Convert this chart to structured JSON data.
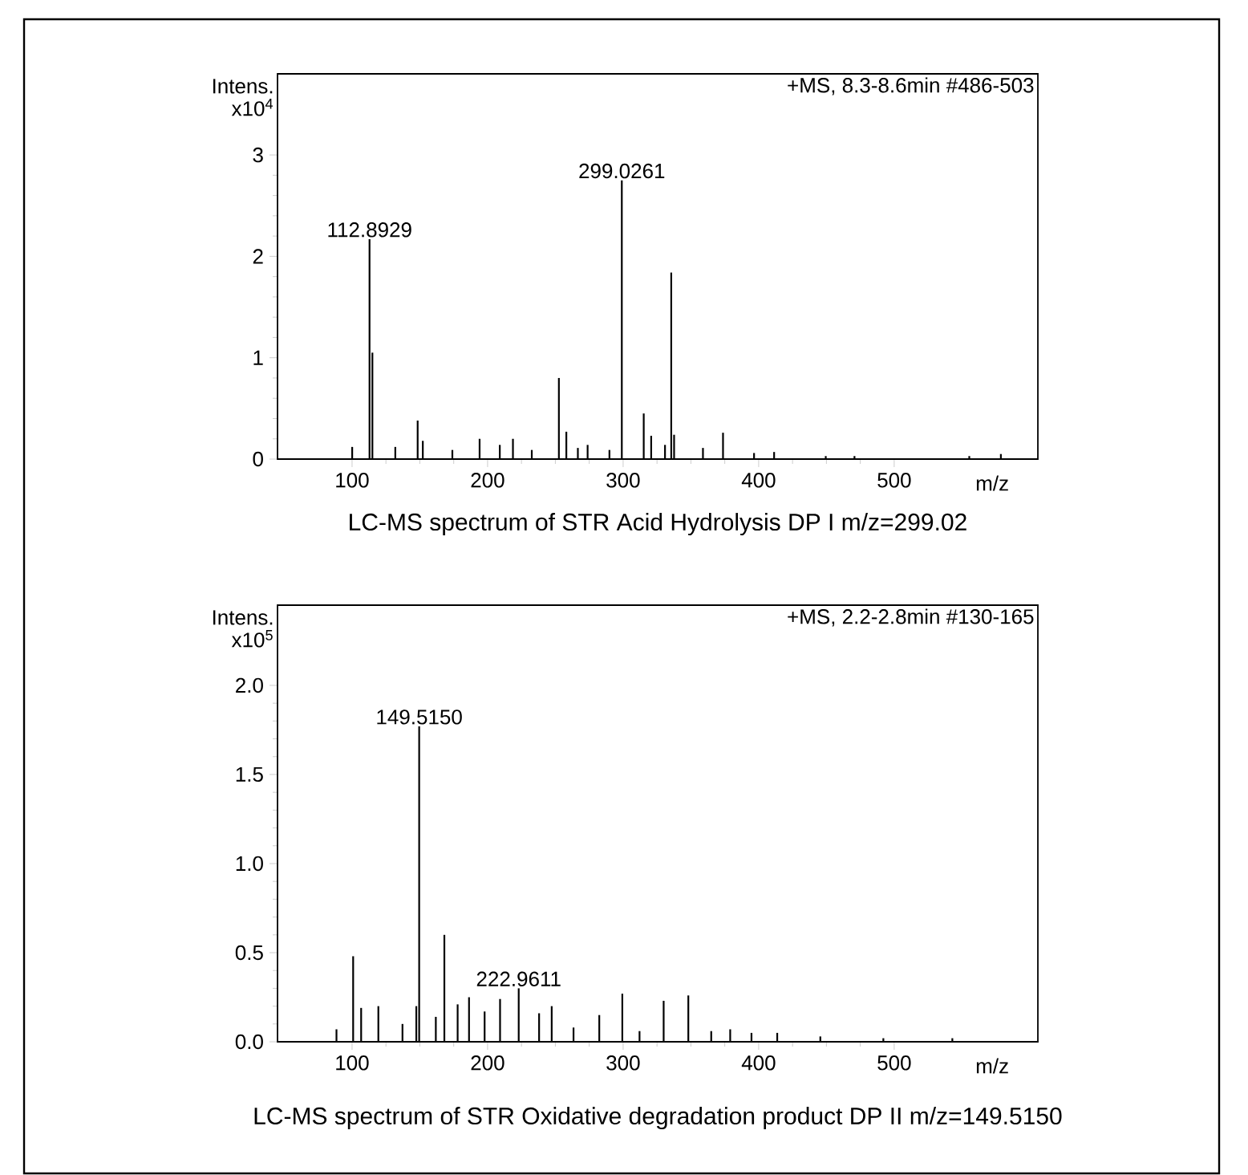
{
  "chart_data": [
    {
      "type": "bar",
      "title": "LC-MS spectrum of STR Acid Hydrolysis DP I m/z=299.02",
      "xlabel": "m/z",
      "ylabel": "Intens. x10$^{4}$",
      "color": "#000000",
      "x": [
        100.1,
        112.89,
        115,
        131.9,
        148.4,
        152.2,
        174,
        194.1,
        209,
        218.7,
        232.6,
        252.6,
        258.1,
        266.6,
        273.8,
        289.9,
        299.03,
        315.2,
        320.7,
        330.9,
        335.5,
        337.6,
        358.9,
        373.7,
        396.6,
        411.4,
        449.5,
        470.7,
        555.4,
        578.7
      ],
      "values": [
        0.12,
        2.17,
        1.05,
        0.12,
        0.38,
        0.18,
        0.09,
        0.2,
        0.14,
        0.2,
        0.09,
        0.8,
        0.27,
        0.11,
        0.14,
        0.09,
        2.75,
        0.45,
        0.23,
        0.14,
        1.84,
        0.24,
        0.11,
        0.26,
        0.06,
        0.07,
        0.03,
        0.03,
        0.03,
        0.05
      ],
      "xlim": [
        45,
        606
      ],
      "ylim": [
        0,
        3.8
      ],
      "xticks": [
        100,
        200,
        300,
        400,
        500
      ],
      "yticks": [
        0,
        1,
        2,
        3
      ],
      "annotations": [
        "+MS, 8.3-8.6min #486-503",
        {
          "text": "112.8929",
          "x": 112.89,
          "y": 2.17
        },
        {
          "text": "299.0261",
          "x": 299.03,
          "y": 2.75
        }
      ]
    },
    {
      "type": "bar",
      "title": "LC-MS spectrum of STR Oxidative degradation product DP II m/z=149.5150",
      "xlabel": "m/z",
      "ylabel": "Intens. x10$^{5}$",
      "color": "#000000",
      "x": [
        88.5,
        100.8,
        106.7,
        119.4,
        137.2,
        147.4,
        149.52,
        161.8,
        168.1,
        177.9,
        186.3,
        197.8,
        209.2,
        222.96,
        238,
        247.3,
        263.4,
        282.4,
        299.4,
        312.1,
        329.9,
        348.1,
        365,
        379,
        394.7,
        413.7,
        445.5,
        492,
        542.9
      ],
      "values": [
        0.07,
        0.48,
        0.19,
        0.2,
        0.1,
        0.2,
        1.77,
        0.14,
        0.6,
        0.21,
        0.25,
        0.17,
        0.24,
        0.3,
        0.16,
        0.2,
        0.08,
        0.15,
        0.27,
        0.06,
        0.23,
        0.26,
        0.06,
        0.07,
        0.05,
        0.05,
        0.03,
        0.02,
        0.02
      ],
      "xlim": [
        45,
        606
      ],
      "ylim": [
        0,
        2.45
      ],
      "xticks": [
        100,
        200,
        300,
        400,
        500
      ],
      "yticks": [
        {
          "value": 0,
          "label": "0.0"
        },
        {
          "value": 0.5,
          "label": "0.5"
        },
        {
          "value": 1,
          "label": "1.0"
        },
        {
          "value": 1.5,
          "label": "1.5"
        },
        {
          "value": 2,
          "label": "2.0"
        }
      ],
      "annotations": [
        "+MS, 2.2-2.8min #130-165",
        {
          "text": "149.5150",
          "x": 149.52,
          "y": 1.77
        },
        {
          "text": "222.9611",
          "x": 222.96,
          "y": 0.3
        }
      ]
    }
  ]
}
